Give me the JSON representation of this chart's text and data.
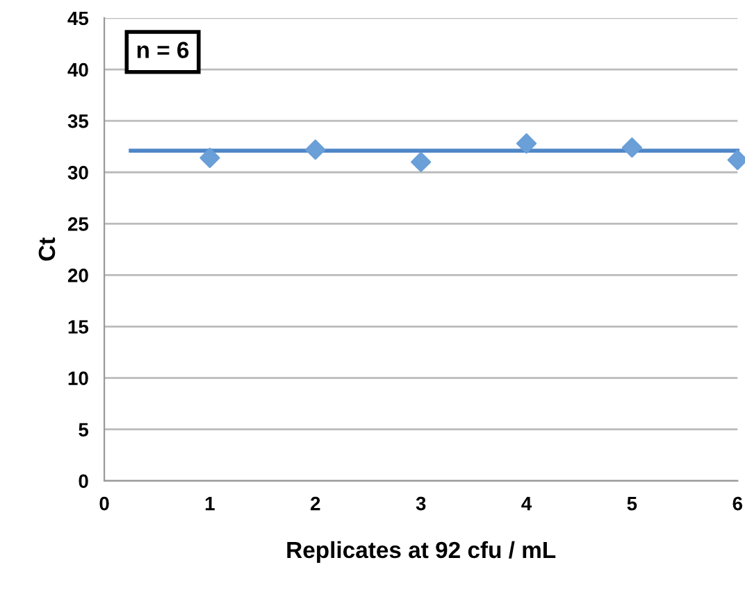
{
  "chart_data": {
    "type": "scatter",
    "xlabel": "Replicates at 92 cfu / mL",
    "ylabel": "Ct",
    "annotations": [
      "n = 6"
    ],
    "series": [
      {
        "color": "#6a9fd8",
        "marker": "diamond",
        "x": [
          1,
          2,
          3,
          4,
          5,
          6
        ],
        "values": [
          31.4,
          32.2,
          31.0,
          32.8,
          32.4,
          31.2
        ]
      },
      {
        "type": "line",
        "color": "#4f86c6",
        "marker": "none",
        "x": [
          0.25,
          6
        ],
        "values": [
          32.1,
          32.1
        ]
      }
    ],
    "xlim": [
      0,
      6
    ],
    "xticks": [
      0,
      1,
      2,
      3,
      4,
      5,
      6
    ],
    "ylim": [
      0,
      45
    ],
    "yticks": [
      0,
      5,
      10,
      15,
      20,
      25,
      30,
      35,
      40,
      45
    ],
    "grid": "y",
    "legend": false
  }
}
